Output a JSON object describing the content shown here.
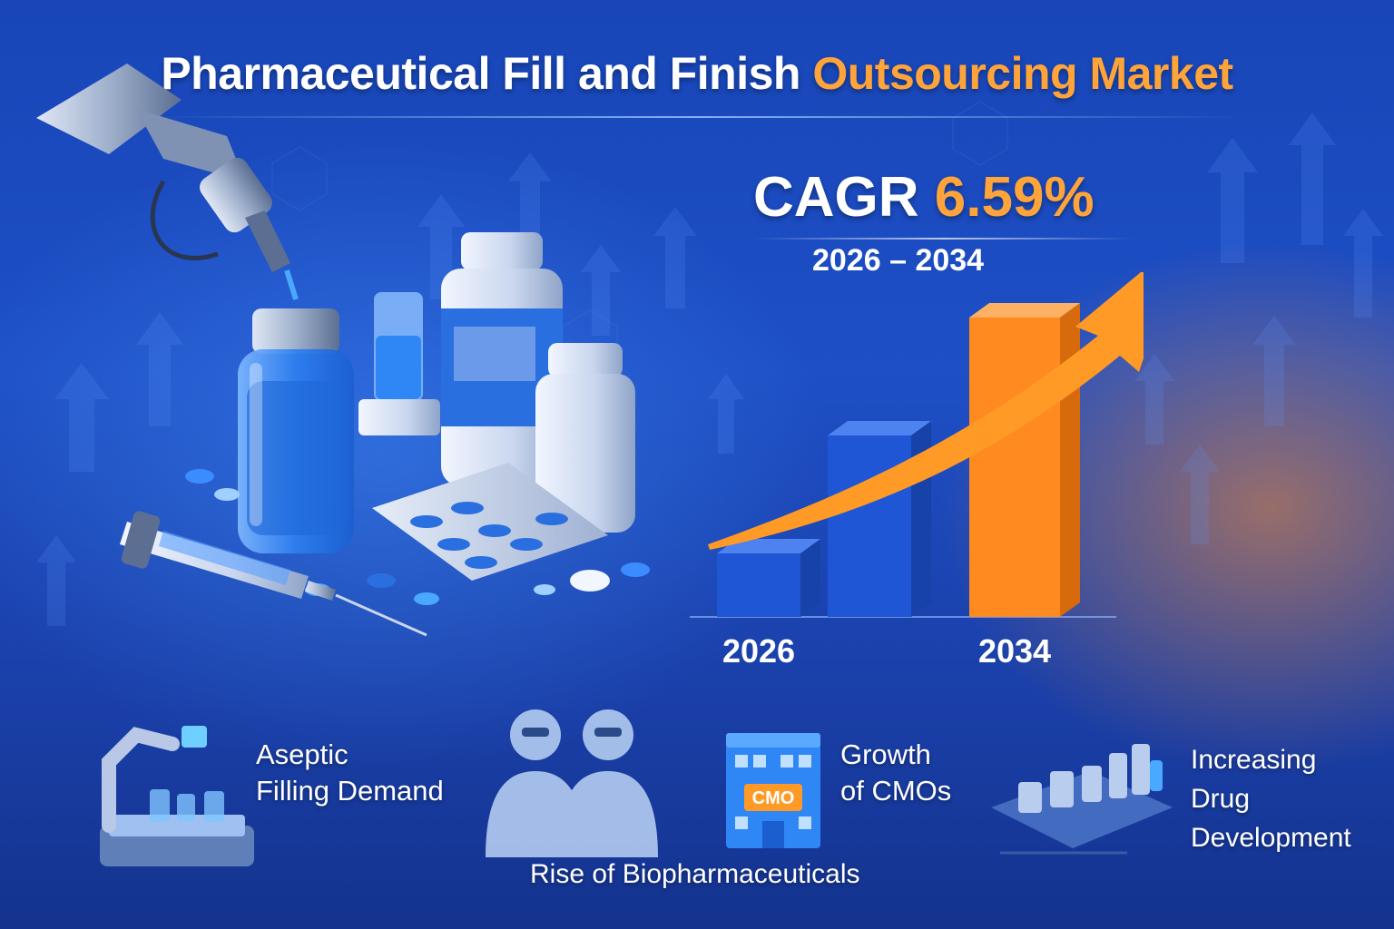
{
  "title": {
    "main": "Pharmaceutical Fill and Finish ",
    "highlight": "Outsourcing Market"
  },
  "cagr": {
    "label": "CAGR ",
    "value": "6.59%",
    "period": "2026 – 2034"
  },
  "chart_data": {
    "type": "bar",
    "categories": [
      "2026",
      "2034"
    ],
    "trend": "rising",
    "colors": {
      "bars_early": "#1f56d6",
      "bar_final": "#ff8a1f",
      "arrow": "#ff9a26"
    }
  },
  "features": [
    {
      "icon": "robot-filling-icon",
      "lines": [
        "Aseptic",
        "Filling Demand"
      ]
    },
    {
      "icon": "scientists-icon",
      "lines": [
        "Rise of Biopharmaceuticals"
      ]
    },
    {
      "icon": "cmo-building-icon",
      "badge": "CMO",
      "lines": [
        "Growth",
        "of CMOs"
      ]
    },
    {
      "icon": "lab-equipment-icon",
      "lines": [
        "Increasing",
        "Drug",
        "Development"
      ]
    }
  ],
  "colors": {
    "accent": "#ffa43a",
    "background": "#1e4fc6",
    "text": "#ffffff"
  }
}
